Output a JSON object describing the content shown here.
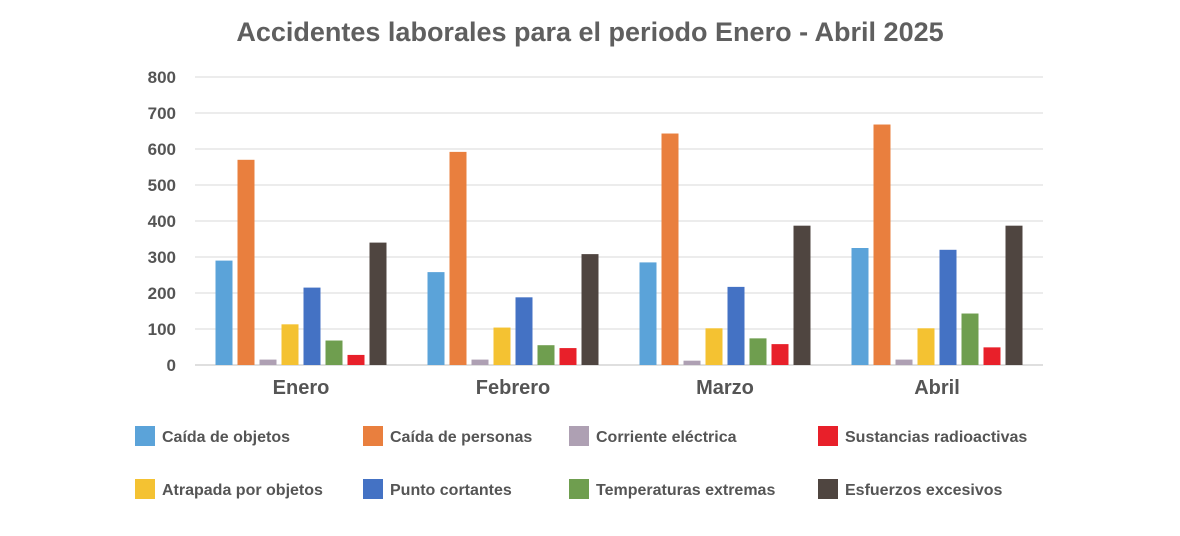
{
  "chart_data": {
    "type": "bar",
    "title": "Accidentes laborales para el periodo Enero - Abril 2025",
    "xlabel": "",
    "ylabel": "",
    "categories": [
      "Enero",
      "Febrero",
      "Marzo",
      "Abril"
    ],
    "ylim": [
      0,
      800
    ],
    "yticks": [
      "0",
      "100",
      "200",
      "300",
      "400",
      "500",
      "600",
      "700",
      "800"
    ],
    "grid": true,
    "legend_position": "bottom",
    "series": [
      {
        "name": "Caída de objetos",
        "color": "#5ba3d9",
        "values": [
          290,
          258,
          285,
          325
        ]
      },
      {
        "name": "Caída de personas",
        "color": "#e97f3e",
        "values": [
          570,
          592,
          643,
          668
        ]
      },
      {
        "name": "Corriente eléctrica",
        "color": "#aea0b3",
        "values": [
          15,
          15,
          12,
          15
        ]
      },
      {
        "name": "Atrapada por objetos",
        "color": "#f4c232",
        "values": [
          113,
          104,
          102,
          102
        ]
      },
      {
        "name": "Punto cortantes",
        "color": "#4472c4",
        "values": [
          215,
          188,
          217,
          320
        ]
      },
      {
        "name": "Temperaturas extremas",
        "color": "#6f9e4f",
        "values": [
          68,
          55,
          74,
          143
        ]
      },
      {
        "name": "Sustancias radioactivas",
        "color": "#e8202a",
        "values": [
          28,
          47,
          58,
          49
        ]
      },
      {
        "name": "Esfuerzos excesivos",
        "color": "#4f4540",
        "values": [
          340,
          308,
          387,
          387
        ]
      }
    ],
    "legend_order": [
      0,
      1,
      2,
      6,
      3,
      4,
      5,
      7
    ]
  }
}
